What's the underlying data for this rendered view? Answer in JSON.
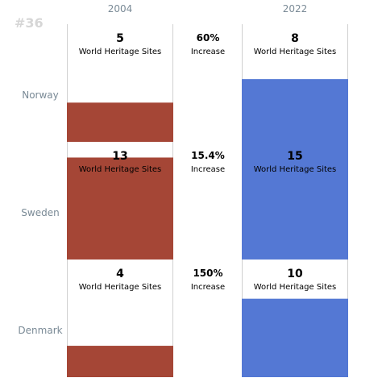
{
  "corner_label": "#36",
  "colors": {
    "bar_2004": "#a54636",
    "bar_2022": "#5478d4",
    "column_line": "#d0d0d0",
    "muted_text": "#7a8a96"
  },
  "chart_data": {
    "type": "bar",
    "columns": [
      "2004",
      "2022"
    ],
    "categories": [
      "Norway",
      "Sweden",
      "Denmark"
    ],
    "ylim": [
      0,
      15
    ],
    "series": [
      {
        "name": "2004",
        "values": [
          5,
          13,
          4
        ]
      },
      {
        "name": "2022",
        "values": [
          8,
          15,
          10
        ]
      }
    ],
    "unit_label": "World Heritage Sites",
    "change_label": "Increase",
    "changes": [
      "60%",
      "15.4%",
      "150%"
    ]
  }
}
